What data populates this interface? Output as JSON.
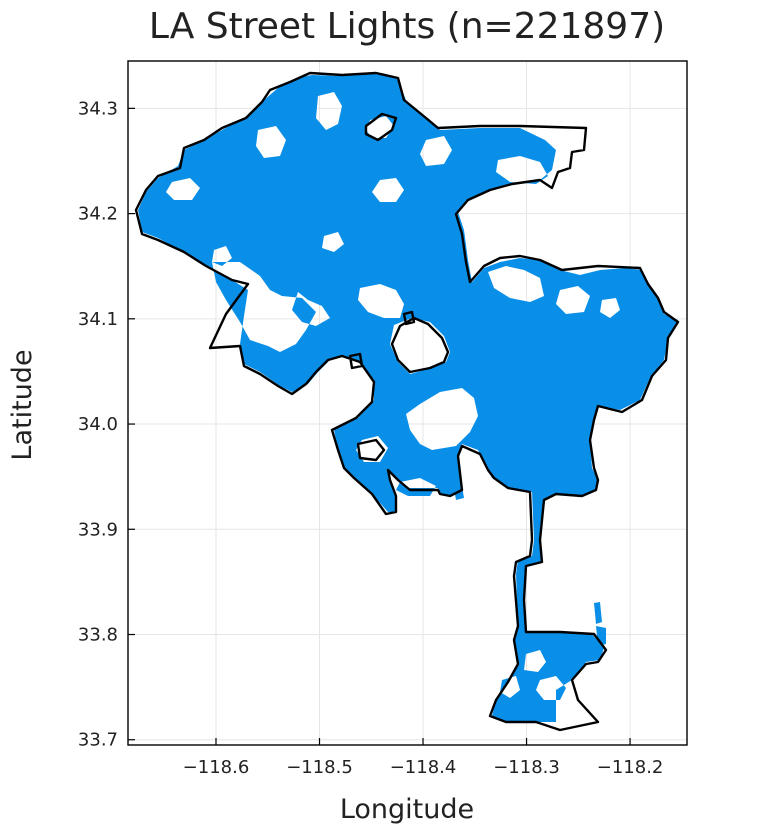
{
  "chart_data": {
    "type": "scatter",
    "title": "LA Street Lights (n=221897)",
    "xlabel": "Longitude",
    "ylabel": "Latitude",
    "xlim": [
      -118.685,
      -118.145
    ],
    "ylim": [
      33.695,
      34.345
    ],
    "xticks": [
      -118.6,
      -118.5,
      -118.4,
      -118.3,
      -118.2
    ],
    "xtick_labels": [
      "−118.6",
      "−118.5",
      "−118.4",
      "−118.3",
      "−118.2"
    ],
    "yticks": [
      33.7,
      33.8,
      33.9,
      34.0,
      34.1,
      34.2,
      34.3
    ],
    "ytick_labels": [
      "33.7",
      "33.8",
      "33.9",
      "34.0",
      "34.1",
      "34.2",
      "34.3"
    ],
    "grid": true,
    "legend": "none",
    "colors": {
      "points": "#0a8fe8",
      "boundary": "#000000",
      "grid": "#e6e6e6",
      "frame": "#000000"
    },
    "series": [
      {
        "kind": "scatter",
        "n": 221897
      },
      {
        "kind": "boundary"
      }
    ]
  }
}
